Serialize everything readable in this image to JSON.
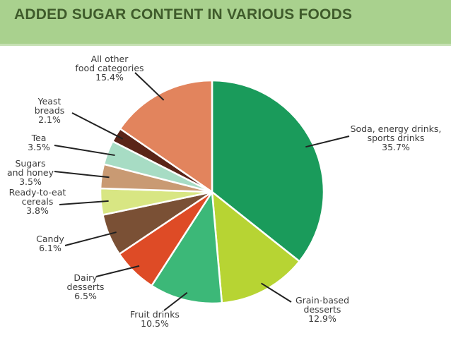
{
  "header": {
    "title": "ADDED SUGAR CONTENT IN VARIOUS FOODS"
  },
  "colors": {
    "header_bg": "#a9d18e",
    "header_text": "#3f5b2b",
    "leader_line": "#222222"
  },
  "chart_data": {
    "type": "pie",
    "title": "",
    "unit": "%",
    "start": "top, clockwise",
    "slices": [
      {
        "lines": [
          "Soda, energy drinks,",
          "sports drinks"
        ],
        "value_label": "35.7%",
        "value": 35.7,
        "color": "#1a9b5b"
      },
      {
        "lines": [
          "Grain-based",
          "desserts"
        ],
        "value_label": "12.9%",
        "value": 12.9,
        "color": "#b7d433"
      },
      {
        "lines": [
          "Fruit drinks"
        ],
        "value_label": "10.5%",
        "value": 10.5,
        "color": "#3cb878"
      },
      {
        "lines": [
          "Dairy",
          "desserts"
        ],
        "value_label": "6.5%",
        "value": 6.5,
        "color": "#de4b26"
      },
      {
        "lines": [
          "Candy"
        ],
        "value_label": "6.1%",
        "value": 6.1,
        "color": "#7a5035"
      },
      {
        "lines": [
          "Ready-to-eat",
          "cereals"
        ],
        "value_label": "3.8%",
        "value": 3.8,
        "color": "#d8e683"
      },
      {
        "lines": [
          "Sugars",
          "and honey"
        ],
        "value_label": "3.5%",
        "value": 3.5,
        "color": "#c99a73"
      },
      {
        "lines": [
          "Tea"
        ],
        "value_label": "3.5%",
        "value": 3.5,
        "color": "#a7dcc4"
      },
      {
        "lines": [
          "Yeast",
          "breads"
        ],
        "value_label": "2.1%",
        "value": 2.1,
        "color": "#5a2418"
      },
      {
        "lines": [
          "All other",
          "food categories"
        ],
        "value_label": "15.4%",
        "value": 15.4,
        "color": "#e2845d"
      }
    ]
  }
}
